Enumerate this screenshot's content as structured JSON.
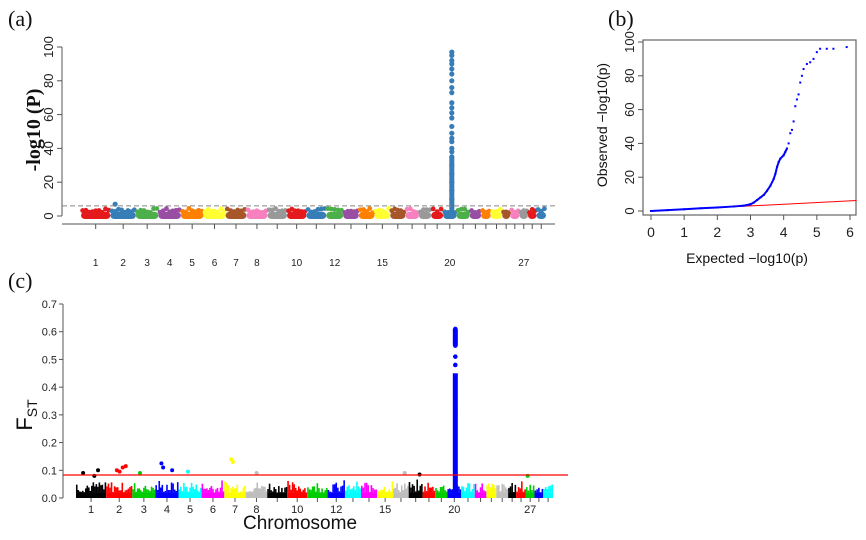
{
  "panels": {
    "a": "(a)",
    "b": "(b)",
    "c": "(c)"
  },
  "chart_data": [
    {
      "id": "a",
      "type": "scatter",
      "subtype": "manhattan",
      "title": "",
      "xlabel": "",
      "ylabel": "-log10 (P)",
      "ylim": [
        0,
        100
      ],
      "yticks": [
        0,
        20,
        40,
        60,
        80,
        100
      ],
      "threshold": 6,
      "threshold_style": "dashed-gray",
      "chromosomes": [
        "1",
        "2",
        "3",
        "4",
        "5",
        "6",
        "7",
        "8",
        "9",
        "10",
        "11",
        "12",
        "13",
        "14",
        "15",
        "16",
        "17",
        "18",
        "19",
        "20",
        "21",
        "22",
        "23",
        "24",
        "25",
        "26",
        "27",
        "28",
        "29"
      ],
      "chrom_tick_labels": [
        "1",
        "2",
        "3",
        "4",
        "5",
        "6",
        "7",
        "8",
        "10",
        "12",
        "15",
        "20",
        "27"
      ],
      "chrom_lengths": [
        158,
        137,
        121,
        121,
        121,
        119,
        112,
        113,
        105,
        104,
        107,
        91,
        84,
        84,
        85,
        81,
        73,
        66,
        64,
        72,
        71,
        61,
        52,
        62,
        42,
        51,
        45,
        46,
        51
      ],
      "colors": [
        "#e41a1c",
        "#377eb8",
        "#4daf4a",
        "#984ea3",
        "#ff7f00",
        "#ffff33",
        "#a65628",
        "#f781bf",
        "#999999"
      ],
      "baseline_max": 4.5,
      "peaks": [
        {
          "chromosome": "2",
          "value": 7
        },
        {
          "chromosome": "20",
          "values": [
            97,
            95,
            92,
            90,
            87,
            84,
            80,
            76,
            73,
            67,
            64,
            61,
            58,
            53,
            49,
            46,
            44,
            40,
            38,
            35,
            30,
            25,
            20,
            15,
            10,
            6
          ]
        }
      ]
    },
    {
      "id": "b",
      "type": "scatter",
      "subtype": "qq",
      "xlabel": "Expected −log10(p)",
      "ylabel": "Observed −log10(p)",
      "xlim": [
        0,
        6
      ],
      "ylim": [
        0,
        100
      ],
      "xticks": [
        0,
        1,
        2,
        3,
        4,
        5,
        6
      ],
      "yticks": [
        0,
        20,
        40,
        60,
        80,
        100
      ],
      "reference_line": "y = x",
      "reference_color": "#ff0000",
      "point_color": "#0000ff",
      "points": [
        [
          0,
          0
        ],
        [
          0.5,
          0.5
        ],
        [
          1,
          1
        ],
        [
          1.5,
          1.6
        ],
        [
          2,
          2.1
        ],
        [
          2.5,
          2.7
        ],
        [
          2.8,
          3.2
        ],
        [
          3,
          4
        ],
        [
          3.1,
          5
        ],
        [
          3.2,
          6.5
        ],
        [
          3.3,
          8
        ],
        [
          3.4,
          9.5
        ],
        [
          3.5,
          12
        ],
        [
          3.6,
          15
        ],
        [
          3.7,
          19
        ],
        [
          3.75,
          22
        ],
        [
          3.8,
          26
        ],
        [
          3.85,
          29
        ],
        [
          3.9,
          31
        ],
        [
          4.0,
          33
        ],
        [
          4.05,
          35
        ],
        [
          4.1,
          37
        ],
        [
          4.15,
          40
        ],
        [
          4.2,
          46
        ],
        [
          4.25,
          48
        ],
        [
          4.3,
          53
        ],
        [
          4.35,
          62
        ],
        [
          4.4,
          66
        ],
        [
          4.45,
          69
        ],
        [
          4.5,
          76
        ],
        [
          4.55,
          80
        ],
        [
          4.6,
          84
        ],
        [
          4.7,
          87
        ],
        [
          4.8,
          88
        ],
        [
          4.9,
          90
        ],
        [
          5.0,
          94
        ],
        [
          5.1,
          96
        ],
        [
          5.3,
          96
        ],
        [
          5.5,
          96
        ],
        [
          5.9,
          97
        ]
      ]
    },
    {
      "id": "c",
      "type": "scatter",
      "subtype": "manhattan",
      "xlabel": "Chromosome",
      "ylabel": "F_ST",
      "ylabel_main": "F",
      "ylabel_sub": "ST",
      "ylim": [
        0,
        0.7
      ],
      "yticks": [
        "0.0",
        "0.1",
        "0.2",
        "0.3",
        "0.4",
        "0.5",
        "0.6",
        "0.7"
      ],
      "threshold": 0.083,
      "threshold_color": "#ff0000",
      "chromosomes": [
        "1",
        "2",
        "3",
        "4",
        "5",
        "6",
        "7",
        "8",
        "9",
        "10",
        "11",
        "12",
        "13",
        "14",
        "15",
        "16",
        "17",
        "18",
        "19",
        "20",
        "21",
        "22",
        "23",
        "24",
        "25",
        "26",
        "27",
        "28",
        "29"
      ],
      "chrom_tick_labels": [
        "1",
        "2",
        "3",
        "4",
        "5",
        "6",
        "7",
        "8",
        "10",
        "12",
        "15",
        "20",
        "27"
      ],
      "chrom_lengths": [
        158,
        137,
        121,
        121,
        121,
        119,
        112,
        113,
        105,
        104,
        107,
        91,
        84,
        84,
        85,
        81,
        73,
        66,
        64,
        72,
        71,
        61,
        52,
        62,
        42,
        51,
        45,
        46,
        51
      ],
      "colors": [
        "#000000",
        "#ff0000",
        "#00cd00",
        "#0000ff",
        "#00ffff",
        "#ff00ff",
        "#ffff00",
        "#bebebe"
      ],
      "baseline_max": 0.06,
      "outliers": [
        {
          "chromosome": "1",
          "value": 0.09
        },
        {
          "chromosome": "1",
          "value": 0.1
        },
        {
          "chromosome": "1",
          "value": 0.08
        },
        {
          "chromosome": "2",
          "value": 0.11
        },
        {
          "chromosome": "2",
          "value": 0.115
        },
        {
          "chromosome": "2",
          "value": 0.1
        },
        {
          "chromosome": "2",
          "value": 0.095
        },
        {
          "chromosome": "3",
          "value": 0.09
        },
        {
          "chromosome": "4",
          "value": 0.125
        },
        {
          "chromosome": "4",
          "value": 0.1
        },
        {
          "chromosome": "4",
          "value": 0.11
        },
        {
          "chromosome": "5",
          "value": 0.095
        },
        {
          "chromosome": "7",
          "value": 0.14
        },
        {
          "chromosome": "7",
          "value": 0.13
        },
        {
          "chromosome": "8",
          "value": 0.09
        },
        {
          "chromosome": "16",
          "value": 0.09
        },
        {
          "chromosome": "17",
          "value": 0.085
        },
        {
          "chromosome": "27",
          "value": 0.08
        }
      ],
      "peak": {
        "chromosome": "20",
        "values": [
          0.61,
          0.6,
          0.59,
          0.58,
          0.57,
          0.56,
          0.55,
          0.51,
          0.48,
          0.44,
          0.42,
          0.4,
          0.38,
          0.35,
          0.32,
          0.3,
          0.27,
          0.24,
          0.2,
          0.17,
          0.14,
          0.1,
          0.08
        ]
      }
    }
  ]
}
